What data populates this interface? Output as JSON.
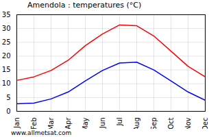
{
  "chart_data": {
    "type": "line",
    "title": "Amendola : temperatures (°C)",
    "categories": [
      "Jan",
      "Feb",
      "Mar",
      "Apr",
      "May",
      "Jun",
      "Jul",
      "Aug",
      "Sep",
      "Oct",
      "Nov",
      "Dec"
    ],
    "series": [
      {
        "color": "#ff0000",
        "values": [
          11.2,
          12.5,
          14.8,
          18.5,
          23.8,
          28,
          31.3,
          31,
          27.3,
          21.8,
          16.3,
          12.5
        ]
      },
      {
        "color": "#0000ff",
        "values": [
          2.7,
          3,
          4.5,
          7,
          11,
          14.8,
          17.5,
          17.8,
          15,
          11,
          7,
          4
        ]
      }
    ],
    "ylim": [
      0,
      35
    ],
    "yticks": [
      0,
      5,
      10,
      15,
      20,
      25,
      30,
      35
    ],
    "grid": true,
    "annotations": [
      "www.allmetsat.com"
    ]
  }
}
